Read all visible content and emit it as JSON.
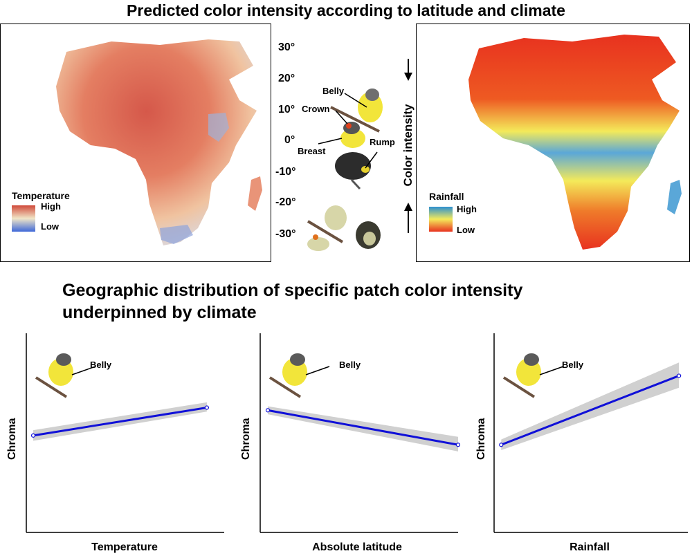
{
  "title_top": "Predicted color intensity according to latitude and climate",
  "title_mid_line1": "Geographic distribution of specific patch color intensity",
  "title_mid_line2": "underpinned by climate",
  "temperature_map": {
    "legend_title": "Temperature",
    "high_label": "High",
    "low_label": "Low",
    "colors": {
      "high": "#d04a3a",
      "mid": "#f1e6c8",
      "low": "#3f68d8"
    }
  },
  "rainfall_map": {
    "legend_title": "Rainfall",
    "high_label": "High",
    "low_label": "Low",
    "colors": {
      "high": "#2c8fd0",
      "mid": "#f4ea5a",
      "low": "#e8321f"
    }
  },
  "latitudes": [
    "30°",
    "20°",
    "10°",
    "0°",
    "-10°",
    "-20°",
    "-30°"
  ],
  "center": {
    "patch_labels": {
      "belly": "Belly",
      "crown": "Crown",
      "breast": "Breast",
      "rump": "Rump"
    },
    "color_intensity_label": "Color intensity"
  },
  "chart_data": [
    {
      "type": "line",
      "title": "",
      "xlabel": "Temperature",
      "ylabel": "Chroma",
      "inset_label": "Belly",
      "series": [
        {
          "name": "fit",
          "x": [
            0,
            1
          ],
          "y": [
            0.53,
            0.74
          ]
        }
      ],
      "ci_band": {
        "lower": [
          0.49,
          0.71
        ],
        "upper": [
          0.57,
          0.78
        ]
      },
      "xlim": [
        -0.04,
        1.1
      ],
      "ylim": [
        -0.2,
        1.3
      ],
      "grid": false
    },
    {
      "type": "line",
      "title": "",
      "xlabel": "Absolute latitude",
      "ylabel": "Chroma",
      "inset_label": "Belly",
      "series": [
        {
          "name": "fit",
          "x": [
            0,
            1
          ],
          "y": [
            0.72,
            0.46
          ]
        }
      ],
      "ci_band": {
        "lower": [
          0.69,
          0.41
        ],
        "upper": [
          0.75,
          0.52
        ]
      },
      "xlim": [
        -0.04,
        1.0
      ],
      "ylim": [
        -0.2,
        1.3
      ],
      "grid": false
    },
    {
      "type": "line",
      "title": "",
      "xlabel": "Rainfall",
      "ylabel": "Chroma",
      "inset_label": "Belly",
      "series": [
        {
          "name": "fit",
          "x": [
            0,
            1
          ],
          "y": [
            0.46,
            0.98
          ]
        }
      ],
      "ci_band": {
        "lower": [
          0.42,
          0.89
        ],
        "upper": [
          0.5,
          1.08
        ]
      },
      "xlim": [
        -0.04,
        1.05
      ],
      "ylim": [
        -0.2,
        1.3
      ],
      "grid": false
    }
  ]
}
